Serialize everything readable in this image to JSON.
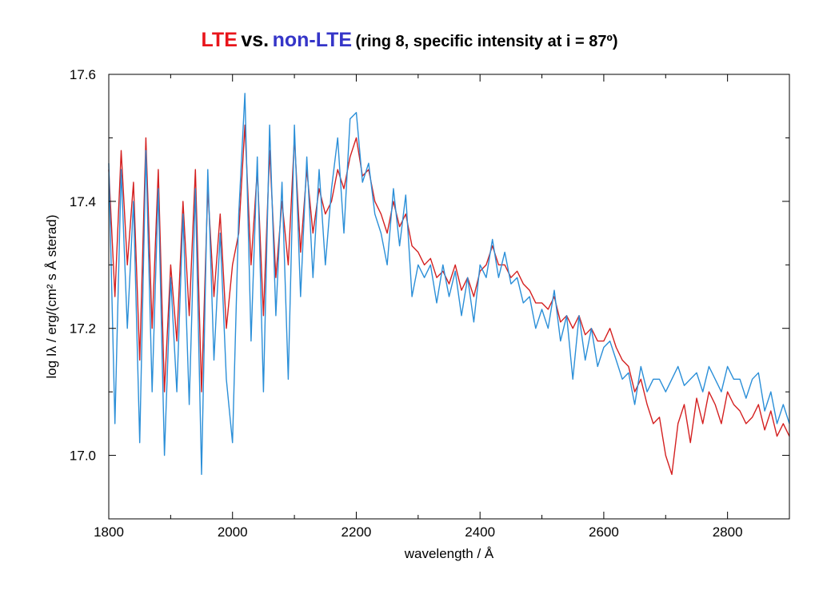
{
  "title": {
    "part1": "LTE",
    "part2": "vs.",
    "part3": "non-LTE",
    "part4": "(ring 8, specific intensity at i = 87º)",
    "color1": "#e8151b",
    "color2": "#000000",
    "color3": "#3535c8"
  },
  "chart_data": {
    "type": "line",
    "xlabel": "wavelength / Å",
    "ylabel": "log Iλ / erg/(cm² s Å sterad)",
    "xlim": [
      1800,
      2900
    ],
    "ylim": [
      16.9,
      17.6
    ],
    "xticks": [
      {
        "value": 1800,
        "label": "1800"
      },
      {
        "value": 2000,
        "label": "2000"
      },
      {
        "value": 2200,
        "label": "2200"
      },
      {
        "value": 2400,
        "label": "2400"
      },
      {
        "value": 2600,
        "label": "2600"
      },
      {
        "value": 2800,
        "label": "2800"
      }
    ],
    "yticks": [
      {
        "value": 17.0,
        "label": "17.0"
      },
      {
        "value": 17.2,
        "label": "17.2"
      },
      {
        "value": 17.4,
        "label": "17.4"
      },
      {
        "value": 17.6,
        "label": "17.6"
      }
    ],
    "minor_xticks": [
      1900,
      2100,
      2300,
      2500,
      2700
    ],
    "minor_yticks": [
      17.1,
      17.3,
      17.5
    ],
    "grid": false,
    "series": [
      {
        "color": "#d42020",
        "x": [
          1800,
          1810,
          1820,
          1830,
          1840,
          1850,
          1860,
          1870,
          1880,
          1890,
          1900,
          1910,
          1920,
          1930,
          1940,
          1950,
          1960,
          1970,
          1980,
          1990,
          2000,
          2010,
          2020,
          2030,
          2040,
          2050,
          2060,
          2070,
          2080,
          2090,
          2100,
          2110,
          2120,
          2130,
          2140,
          2150,
          2160,
          2170,
          2180,
          2190,
          2200,
          2210,
          2220,
          2230,
          2240,
          2250,
          2260,
          2270,
          2280,
          2290,
          2300,
          2310,
          2320,
          2330,
          2340,
          2350,
          2360,
          2370,
          2380,
          2390,
          2400,
          2410,
          2420,
          2430,
          2440,
          2450,
          2460,
          2470,
          2480,
          2490,
          2500,
          2510,
          2520,
          2530,
          2540,
          2550,
          2560,
          2570,
          2580,
          2590,
          2600,
          2610,
          2620,
          2630,
          2640,
          2650,
          2660,
          2670,
          2680,
          2690,
          2700,
          2710,
          2720,
          2730,
          2740,
          2750,
          2760,
          2770,
          2780,
          2790,
          2800,
          2810,
          2820,
          2830,
          2840,
          2850,
          2860,
          2870,
          2880,
          2890,
          2900
        ],
        "y": [
          17.45,
          17.25,
          17.48,
          17.3,
          17.43,
          17.15,
          17.5,
          17.2,
          17.45,
          17.1,
          17.3,
          17.18,
          17.4,
          17.22,
          17.45,
          17.1,
          17.42,
          17.25,
          17.38,
          17.2,
          17.3,
          17.35,
          17.52,
          17.3,
          17.45,
          17.22,
          17.48,
          17.28,
          17.4,
          17.3,
          17.5,
          17.32,
          17.45,
          17.35,
          17.42,
          17.38,
          17.4,
          17.45,
          17.42,
          17.47,
          17.5,
          17.44,
          17.45,
          17.4,
          17.38,
          17.35,
          17.4,
          17.36,
          17.38,
          17.33,
          17.32,
          17.3,
          17.31,
          17.28,
          17.29,
          17.27,
          17.3,
          17.26,
          17.28,
          17.25,
          17.29,
          17.3,
          17.33,
          17.3,
          17.3,
          17.28,
          17.29,
          17.27,
          17.26,
          17.24,
          17.24,
          17.23,
          17.25,
          17.21,
          17.22,
          17.2,
          17.22,
          17.19,
          17.2,
          17.18,
          17.18,
          17.2,
          17.17,
          17.15,
          17.14,
          17.1,
          17.12,
          17.08,
          17.05,
          17.06,
          17.0,
          16.97,
          17.05,
          17.08,
          17.02,
          17.09,
          17.05,
          17.1,
          17.08,
          17.05,
          17.1,
          17.08,
          17.07,
          17.05,
          17.06,
          17.08,
          17.04,
          17.07,
          17.03,
          17.05,
          17.03
        ]
      },
      {
        "color": "#2b8fd8",
        "x": [
          1800,
          1810,
          1820,
          1830,
          1840,
          1850,
          1860,
          1870,
          1880,
          1890,
          1900,
          1910,
          1920,
          1930,
          1940,
          1950,
          1960,
          1970,
          1980,
          1990,
          2000,
          2010,
          2020,
          2030,
          2040,
          2050,
          2060,
          2070,
          2080,
          2090,
          2100,
          2110,
          2120,
          2130,
          2140,
          2150,
          2160,
          2170,
          2180,
          2190,
          2200,
          2210,
          2220,
          2230,
          2240,
          2250,
          2260,
          2270,
          2280,
          2290,
          2300,
          2310,
          2320,
          2330,
          2340,
          2350,
          2360,
          2370,
          2380,
          2390,
          2400,
          2410,
          2420,
          2430,
          2440,
          2450,
          2460,
          2470,
          2480,
          2490,
          2500,
          2510,
          2520,
          2530,
          2540,
          2550,
          2560,
          2570,
          2580,
          2590,
          2600,
          2610,
          2620,
          2630,
          2640,
          2650,
          2660,
          2670,
          2680,
          2690,
          2700,
          2710,
          2720,
          2730,
          2740,
          2750,
          2760,
          2770,
          2780,
          2790,
          2800,
          2810,
          2820,
          2830,
          2840,
          2850,
          2860,
          2870,
          2880,
          2890,
          2900
        ],
        "y": [
          17.46,
          17.05,
          17.45,
          17.2,
          17.4,
          17.02,
          17.48,
          17.1,
          17.42,
          17.0,
          17.28,
          17.1,
          17.38,
          17.08,
          17.42,
          16.97,
          17.45,
          17.15,
          17.35,
          17.12,
          17.02,
          17.38,
          17.57,
          17.18,
          17.47,
          17.1,
          17.52,
          17.22,
          17.43,
          17.12,
          17.52,
          17.25,
          17.47,
          17.28,
          17.45,
          17.3,
          17.42,
          17.5,
          17.35,
          17.53,
          17.54,
          17.43,
          17.46,
          17.38,
          17.35,
          17.3,
          17.42,
          17.33,
          17.41,
          17.25,
          17.3,
          17.28,
          17.3,
          17.24,
          17.3,
          17.25,
          17.29,
          17.22,
          17.28,
          17.21,
          17.3,
          17.28,
          17.34,
          17.28,
          17.32,
          17.27,
          17.28,
          17.24,
          17.25,
          17.2,
          17.23,
          17.2,
          17.26,
          17.18,
          17.22,
          17.12,
          17.22,
          17.15,
          17.2,
          17.14,
          17.17,
          17.18,
          17.15,
          17.12,
          17.13,
          17.08,
          17.14,
          17.1,
          17.12,
          17.12,
          17.1,
          17.12,
          17.14,
          17.11,
          17.12,
          17.13,
          17.1,
          17.14,
          17.12,
          17.1,
          17.14,
          17.12,
          17.12,
          17.09,
          17.12,
          17.13,
          17.07,
          17.1,
          17.05,
          17.08,
          17.05
        ]
      }
    ]
  }
}
